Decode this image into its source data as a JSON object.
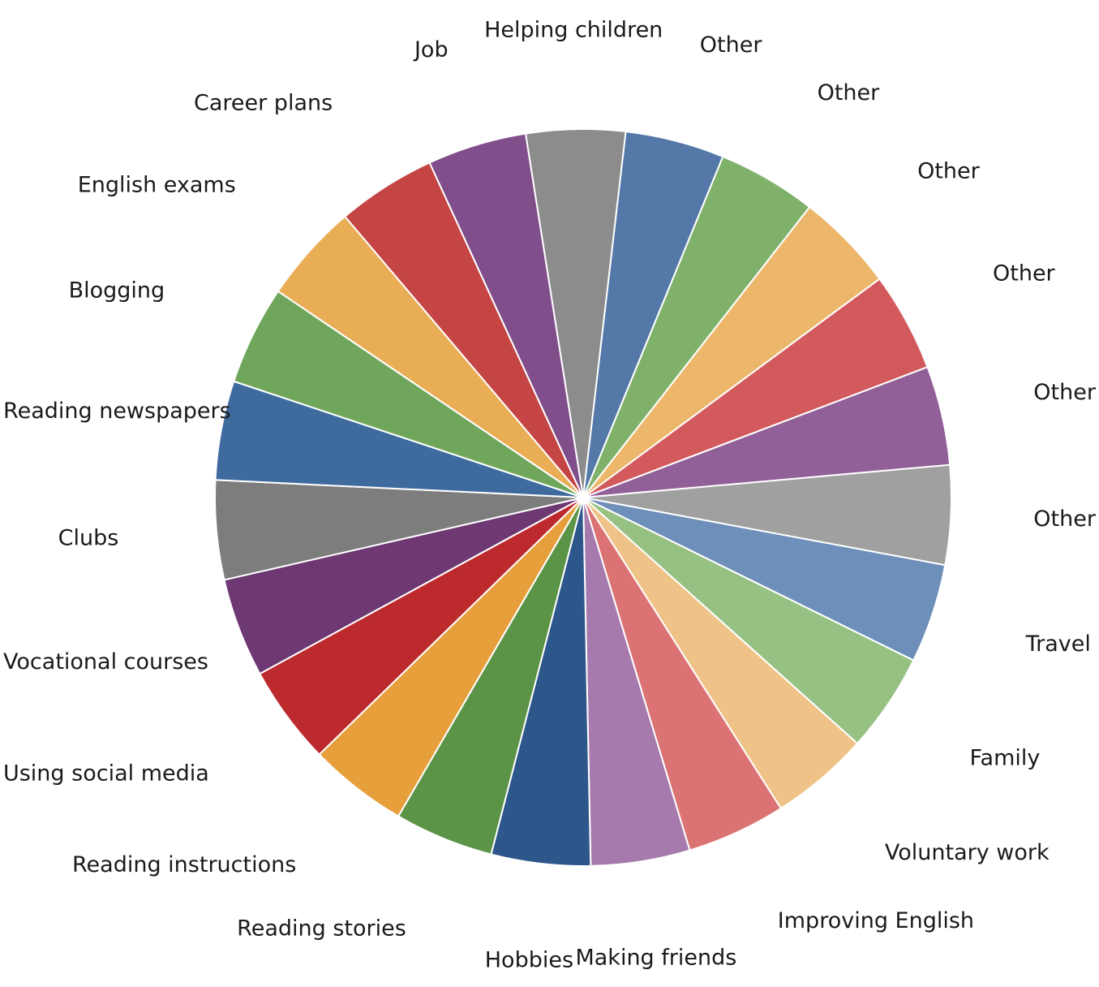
{
  "chart_data": {
    "type": "pie",
    "start": "top",
    "direction": "clockwise",
    "slices": [
      {
        "label": "Helping children",
        "value": 1,
        "color": "#8c8c8c"
      },
      {
        "label": "Other",
        "value": 1,
        "color": "#5478a8"
      },
      {
        "label": "Other",
        "value": 1,
        "color": "#7fb16b"
      },
      {
        "label": "Other",
        "value": 1,
        "color": "#ecb76a"
      },
      {
        "label": "Other",
        "value": 1,
        "color": "#d25a5c"
      },
      {
        "label": "Other",
        "value": 1,
        "color": "#926098"
      },
      {
        "label": "Other",
        "value": 1,
        "color": "#a0a0a0"
      },
      {
        "label": "Travel",
        "value": 1,
        "color": "#6e8fb9"
      },
      {
        "label": "Family",
        "value": 1,
        "color": "#96c183"
      },
      {
        "label": "Voluntary work",
        "value": 1,
        "color": "#efc387"
      },
      {
        "label": "Improving English",
        "value": 1,
        "color": "#db7374"
      },
      {
        "label": "Making friends",
        "value": 1,
        "color": "#a77aae"
      },
      {
        "label": "Hobbies",
        "value": 1,
        "color": "#2d578a"
      },
      {
        "label": "Reading stories",
        "value": 1,
        "color": "#5c9447"
      },
      {
        "label": "Reading instructions",
        "value": 1,
        "color": "#e79f3c"
      },
      {
        "label": "Using social media",
        "value": 1,
        "color": "#bd2a2e"
      },
      {
        "label": "Vocational courses",
        "value": 1,
        "color": "#6e3873"
      },
      {
        "label": "Clubs",
        "value": 1,
        "color": "#7d7d7d"
      },
      {
        "label": "Reading newspapers",
        "value": 1,
        "color": "#3f6a9e"
      },
      {
        "label": "Blogging",
        "value": 1,
        "color": "#6fa65b"
      },
      {
        "label": "English exams",
        "value": 1,
        "color": "#e8ad55"
      },
      {
        "label": "Career plans",
        "value": 1,
        "color": "#c54444"
      },
      {
        "label": "Job",
        "value": 1,
        "color": "#804e8b"
      }
    ]
  }
}
